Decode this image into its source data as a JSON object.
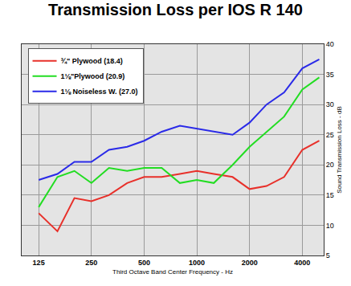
{
  "chart_data": {
    "type": "line",
    "title": "Transmission Loss per IOS R 140",
    "x_label": "Third Octave Band Center Frequency - Hz",
    "y_label": "Sound Transmission Loss - dB",
    "log": "x",
    "grid": true,
    "legend": "top left",
    "x": [
      125,
      160,
      200,
      250,
      315,
      400,
      500,
      630,
      800,
      1000,
      1250,
      1600,
      2000,
      2500,
      3150,
      4000,
      5000
    ],
    "xlim": [
      100,
      5300
    ],
    "xticks": [
      125,
      250,
      500,
      1000,
      2000,
      4000
    ],
    "ylim": [
      5,
      40
    ],
    "yticks": [
      5,
      10,
      15,
      20,
      25,
      30,
      35,
      40
    ],
    "series": [
      {
        "name": "¾\" Plywood (18.4)",
        "color": "#e8302a",
        "values": [
          12,
          9,
          14.5,
          14,
          15,
          17,
          18,
          18,
          18.5,
          19,
          18.5,
          18,
          16,
          16.5,
          18,
          22.5,
          24
        ]
      },
      {
        "name": "1⅛\"Plywood (20.9)",
        "color": "#22dd22",
        "values": [
          13,
          18,
          19,
          17,
          19.5,
          19,
          19.5,
          19.5,
          17,
          17.5,
          17,
          20,
          23,
          25.5,
          28,
          32.5,
          34.5
        ]
      },
      {
        "name": "1⅛ Noiseless W. (27.0)",
        "color": "#2a2ae8",
        "values": [
          17.5,
          18.5,
          20.5,
          20.5,
          22.5,
          23,
          24,
          25.5,
          26.5,
          26,
          25.5,
          25,
          27,
          30,
          32,
          36,
          37.5
        ]
      }
    ]
  }
}
